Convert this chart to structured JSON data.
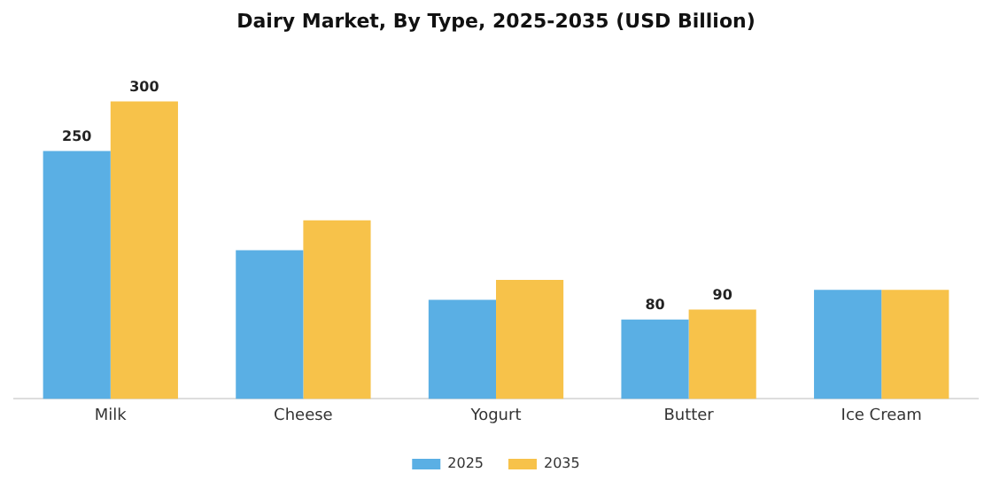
{
  "chart_data": {
    "type": "bar",
    "title": "Dairy Market, By Type, 2025-2035 (USD Billion)",
    "categories": [
      "Milk",
      "Cheese",
      "Yogurt",
      "Butter",
      "Ice Cream"
    ],
    "series": [
      {
        "name": "2025",
        "color": "#5aafe4",
        "values": [
          250,
          150,
          100,
          80,
          110
        ],
        "value_labels": [
          "250",
          null,
          null,
          "80",
          null
        ]
      },
      {
        "name": "2035",
        "color": "#f7c24a",
        "values": [
          300,
          180,
          120,
          90,
          110
        ],
        "value_labels": [
          "300",
          null,
          null,
          "90",
          null
        ]
      }
    ],
    "legend": "bottom",
    "grid": false
  }
}
